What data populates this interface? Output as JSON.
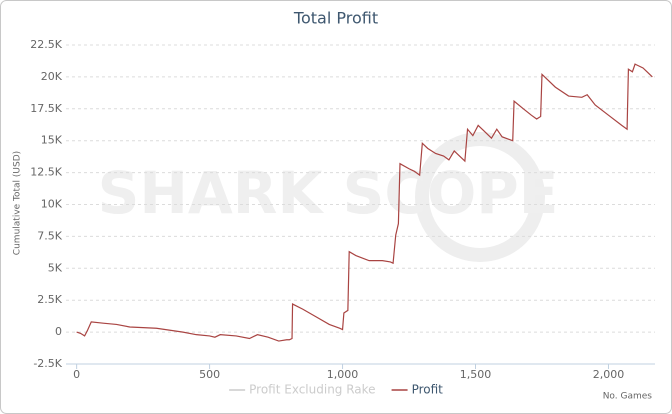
{
  "chart_data": {
    "type": "line",
    "title": "Total Profit",
    "watermark": "SHARK SCOPE",
    "y_label": "Cumulative Total (USD)",
    "x_label": "No. Games",
    "x": [
      0,
      15,
      30,
      40,
      55,
      100,
      150,
      200,
      300,
      400,
      450,
      500,
      520,
      540,
      600,
      650,
      680,
      720,
      760,
      790,
      800,
      810,
      812,
      850,
      900,
      950,
      990,
      1000,
      1005,
      1020,
      1025,
      1050,
      1100,
      1150,
      1180,
      1190,
      1200,
      1210,
      1216,
      1250,
      1270,
      1290,
      1300,
      1320,
      1350,
      1380,
      1400,
      1420,
      1440,
      1460,
      1470,
      1490,
      1510,
      1530,
      1560,
      1580,
      1600,
      1640,
      1645,
      1680,
      1710,
      1730,
      1745,
      1750,
      1800,
      1850,
      1900,
      1920,
      1950,
      2000,
      2050,
      2070,
      2075,
      2090,
      2100,
      2130,
      2150,
      2165
    ],
    "series": [
      {
        "name": "Profit Excluding Rake",
        "color": "#cccccc",
        "visible": false
      },
      {
        "name": "Profit",
        "color": "#a94442",
        "values": [
          0,
          -100,
          -300,
          100,
          800,
          700,
          600,
          400,
          300,
          0,
          -200,
          -300,
          -400,
          -200,
          -300,
          -500,
          -200,
          -400,
          -700,
          -600,
          -600,
          -500,
          2200,
          1800,
          1200,
          600,
          300,
          200,
          1500,
          1700,
          6300,
          6000,
          5600,
          5600,
          5500,
          5400,
          7600,
          8500,
          13200,
          12800,
          12600,
          12300,
          14800,
          14400,
          14000,
          13800,
          13500,
          14200,
          13800,
          13400,
          15900,
          15400,
          16200,
          15800,
          15200,
          15900,
          15300,
          15000,
          18100,
          17500,
          17000,
          16700,
          16900,
          20200,
          19200,
          18500,
          18400,
          18600,
          17800,
          17000,
          16200,
          15900,
          20600,
          20400,
          21000,
          20700,
          20300,
          20000
        ]
      }
    ],
    "xlim": [
      -40,
      2175
    ],
    "xticks": [
      0,
      500,
      {
        "value": 1000,
        "label": "1,000"
      },
      {
        "value": 1500,
        "label": "1,500"
      },
      {
        "value": 2000,
        "label": "2,000"
      }
    ],
    "ylim": [
      -2500,
      22500
    ],
    "yticks": [
      {
        "value": -2500,
        "label": "-2.5K"
      },
      0,
      {
        "value": 2500,
        "label": "2.5K"
      },
      {
        "value": 5000,
        "label": "5K"
      },
      {
        "value": 7500,
        "label": "7.5K"
      },
      {
        "value": 10000,
        "label": "10K"
      },
      {
        "value": 12500,
        "label": "12.5K"
      },
      {
        "value": 15000,
        "label": "15K"
      },
      {
        "value": 17500,
        "label": "17.5K"
      },
      {
        "value": 20000,
        "label": "20K"
      },
      {
        "value": 22500,
        "label": "22.5K"
      }
    ],
    "grid": true
  }
}
